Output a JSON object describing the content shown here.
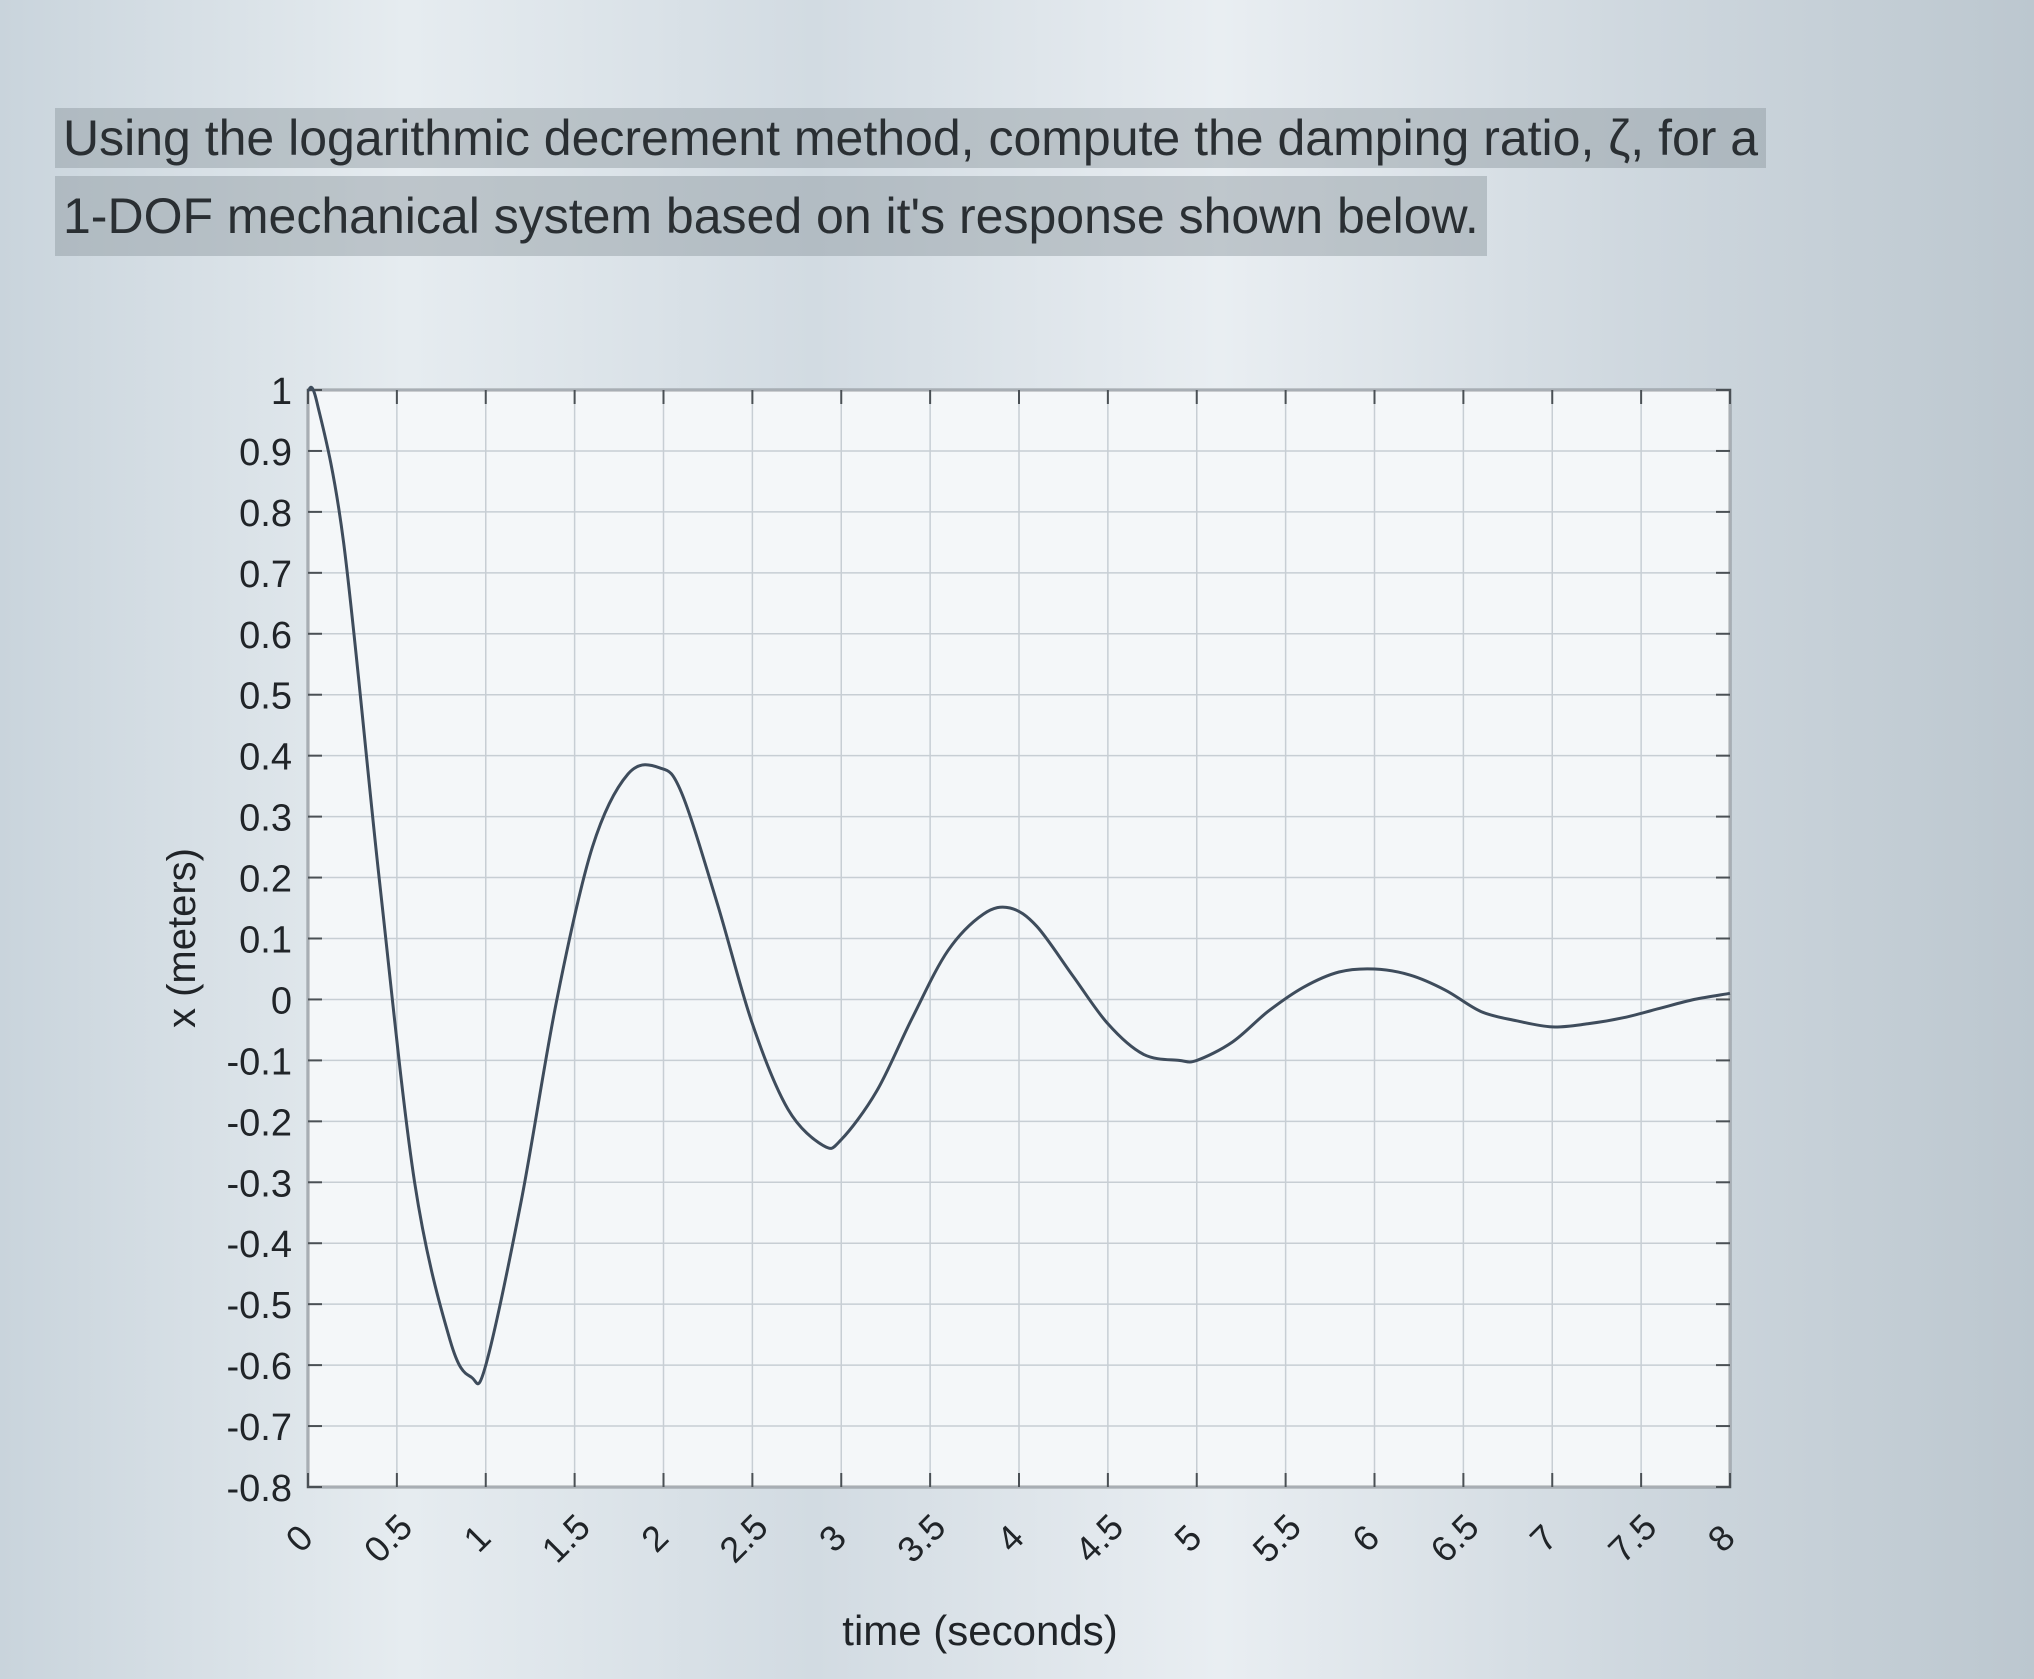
{
  "question": {
    "line1": "Using the logarithmic decrement method, compute the damping ratio, ζ, for a",
    "line2": "1-DOF mechanical system based on it's response shown below."
  },
  "chart_data": {
    "type": "line",
    "xlabel": "time (seconds)",
    "ylabel": "x (meters)",
    "xlim": [
      0,
      8
    ],
    "ylim": [
      -0.8,
      1
    ],
    "grid": true,
    "xticks": [
      "0",
      "0.5",
      "1",
      "1.5",
      "2",
      "2.5",
      "3",
      "3.5",
      "4",
      "4.5",
      "5",
      "5.5",
      "6",
      "6.5",
      "7",
      "7.5",
      "8"
    ],
    "yticks": [
      "1",
      "0.9",
      "0.8",
      "0.7",
      "0.6",
      "0.5",
      "0.4",
      "0.3",
      "0.2",
      "0.1",
      "0",
      "-0.1",
      "-0.2",
      "-0.3",
      "-0.4",
      "-0.5",
      "-0.6",
      "-0.7",
      "-0.8"
    ],
    "series": [
      {
        "x": [
          0,
          0.05,
          0.2,
          0.4,
          0.6,
          0.8,
          0.92,
          1.0,
          1.2,
          1.4,
          1.6,
          1.8,
          1.98,
          2.1,
          2.3,
          2.5,
          2.7,
          2.9,
          3.0,
          3.2,
          3.4,
          3.6,
          3.8,
          3.95,
          4.1,
          4.3,
          4.5,
          4.7,
          4.9,
          5.0,
          5.2,
          5.4,
          5.6,
          5.8,
          6.0,
          6.2,
          6.4,
          6.6,
          6.8,
          7.0,
          7.2,
          7.4,
          7.6,
          7.8,
          8.0
        ],
        "y": [
          1.0,
          0.98,
          0.75,
          0.2,
          -0.3,
          -0.56,
          -0.62,
          -0.6,
          -0.33,
          0.0,
          0.25,
          0.37,
          0.38,
          0.34,
          0.16,
          -0.04,
          -0.18,
          -0.24,
          -0.23,
          -0.15,
          -0.03,
          0.08,
          0.14,
          0.15,
          0.12,
          0.04,
          -0.04,
          -0.09,
          -0.1,
          -0.1,
          -0.07,
          -0.02,
          0.02,
          0.045,
          0.05,
          0.04,
          0.015,
          -0.02,
          -0.035,
          -0.045,
          -0.04,
          -0.03,
          -0.015,
          0.0,
          0.01
        ]
      }
    ]
  }
}
